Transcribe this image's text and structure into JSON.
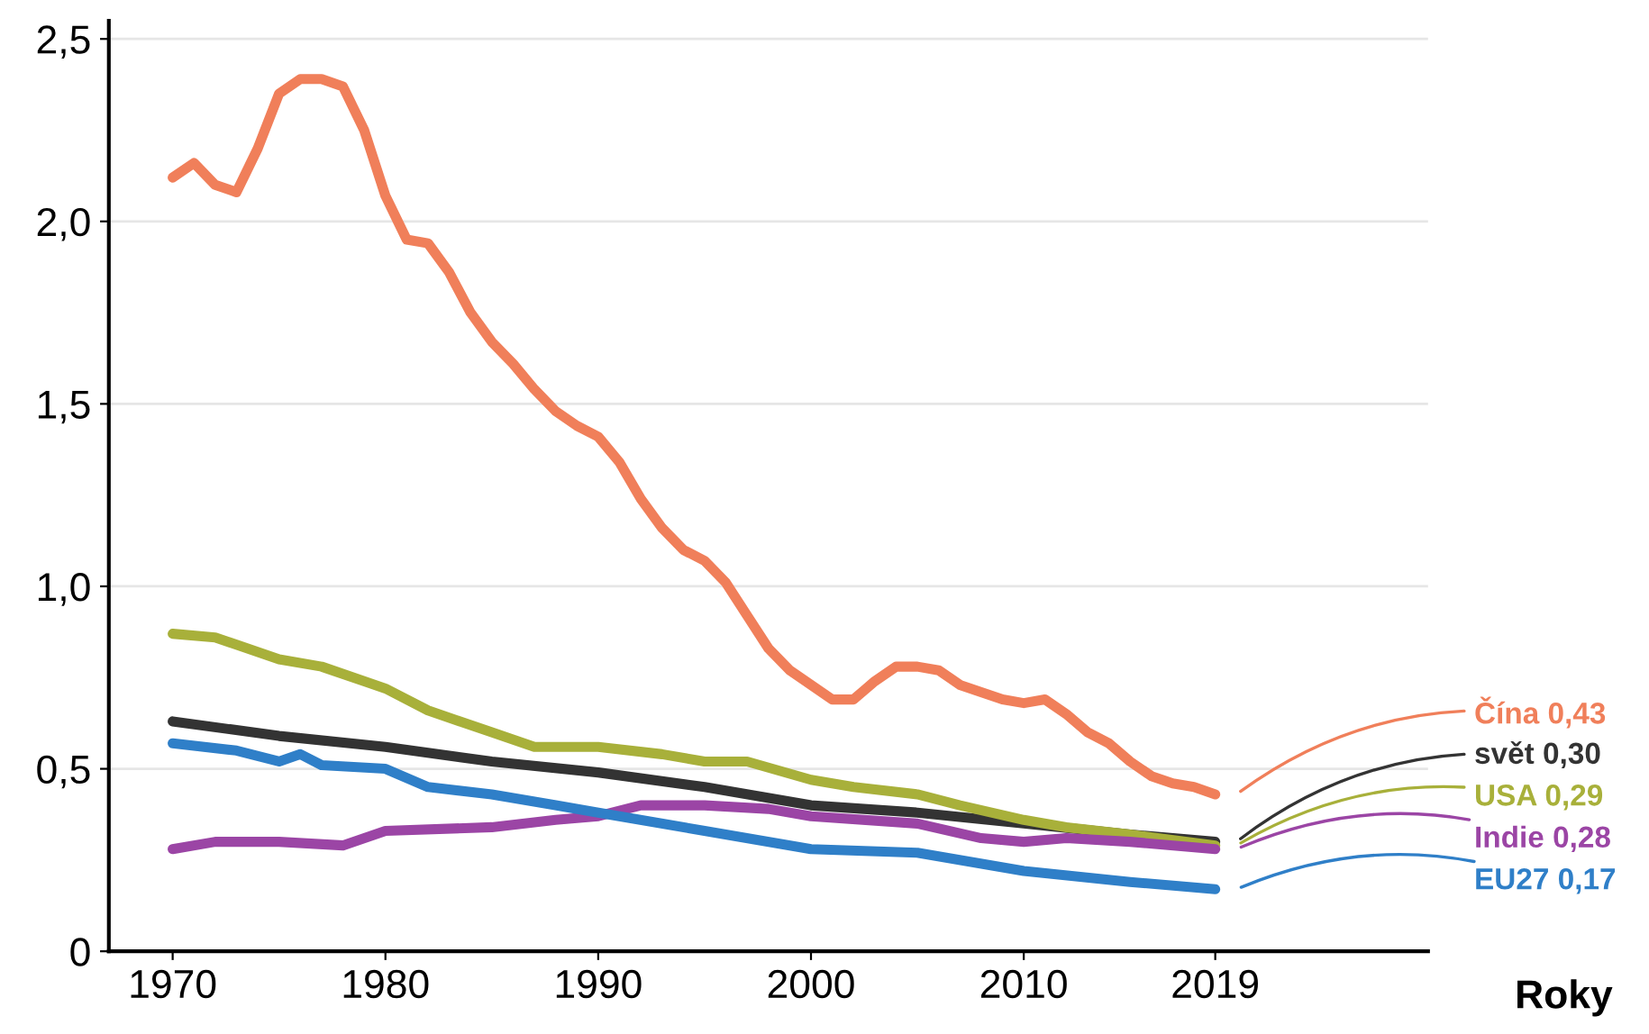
{
  "chart_data": {
    "type": "line",
    "xlabel": "Roky",
    "xlim": [
      1967,
      2029
    ],
    "xticks": [
      1970,
      1980,
      1990,
      2000,
      2010,
      2019
    ],
    "ylim": [
      0,
      2.55
    ],
    "yticks": [
      0,
      {
        "value": 0.5,
        "label": "0,5"
      },
      {
        "value": 1.0,
        "label": "1,0"
      },
      {
        "value": 1.5,
        "label": "1,5"
      },
      {
        "value": 2.0,
        "label": "2,0"
      },
      {
        "value": 2.5,
        "label": "2,5"
      }
    ],
    "grid": "y",
    "line_style": "solid",
    "series": [
      {
        "name": "Čína 0,43",
        "color": "#f07f5a",
        "x": [
          1970,
          1971,
          1972,
          1973,
          1974,
          1975,
          1976,
          1977,
          1978,
          1979,
          1980,
          1981,
          1982,
          1983,
          1984,
          1985,
          1986,
          1987,
          1988,
          1989,
          1990,
          1991,
          1992,
          1993,
          1994,
          1995,
          1996,
          1997,
          1998,
          1999,
          2000,
          2001,
          2002,
          2003,
          2004,
          2005,
          2006,
          2007,
          2008,
          2009,
          2010,
          2011,
          2012,
          2013,
          2014,
          2015,
          2016,
          2017,
          2018,
          2019
        ],
        "values": [
          2.12,
          2.16,
          2.1,
          2.08,
          2.2,
          2.35,
          2.39,
          2.39,
          2.37,
          2.25,
          2.07,
          1.95,
          1.94,
          1.86,
          1.75,
          1.67,
          1.61,
          1.54,
          1.48,
          1.44,
          1.41,
          1.34,
          1.24,
          1.16,
          1.1,
          1.07,
          1.01,
          0.92,
          0.83,
          0.77,
          0.73,
          0.69,
          0.69,
          0.74,
          0.78,
          0.78,
          0.77,
          0.73,
          0.71,
          0.69,
          0.68,
          0.69,
          0.65,
          0.6,
          0.57,
          0.52,
          0.48,
          0.46,
          0.45,
          0.43
        ]
      },
      {
        "name": "svět 0,30",
        "color": "#333333",
        "x": [
          1970,
          1975,
          1980,
          1985,
          1990,
          1995,
          2000,
          2005,
          2010,
          2015,
          2019
        ],
        "values": [
          0.63,
          0.59,
          0.56,
          0.52,
          0.49,
          0.45,
          0.4,
          0.38,
          0.35,
          0.32,
          0.3
        ]
      },
      {
        "name": "USA 0,29",
        "color": "#a8b03a",
        "x": [
          1970,
          1972,
          1973,
          1975,
          1977,
          1980,
          1982,
          1985,
          1987,
          1990,
          1993,
          1995,
          1997,
          2000,
          2002,
          2005,
          2007,
          2010,
          2012,
          2015,
          2019
        ],
        "values": [
          0.87,
          0.86,
          0.84,
          0.8,
          0.78,
          0.72,
          0.66,
          0.6,
          0.56,
          0.56,
          0.54,
          0.52,
          0.52,
          0.47,
          0.45,
          0.43,
          0.4,
          0.36,
          0.34,
          0.32,
          0.29
        ]
      },
      {
        "name": "Indie 0,28",
        "color": "#9b45a5",
        "x": [
          1970,
          1972,
          1975,
          1978,
          1980,
          1985,
          1988,
          1990,
          1992,
          1995,
          1998,
          2000,
          2005,
          2008,
          2010,
          2012,
          2015,
          2019
        ],
        "values": [
          0.28,
          0.3,
          0.3,
          0.29,
          0.33,
          0.34,
          0.36,
          0.37,
          0.4,
          0.4,
          0.39,
          0.37,
          0.35,
          0.31,
          0.3,
          0.31,
          0.3,
          0.28
        ]
      },
      {
        "name": "EU27 0,17",
        "color": "#2f7fc8",
        "x": [
          1970,
          1973,
          1975,
          1976,
          1977,
          1980,
          1982,
          1985,
          1988,
          1990,
          1995,
          2000,
          2005,
          2010,
          2015,
          2019
        ],
        "values": [
          0.57,
          0.55,
          0.52,
          0.54,
          0.51,
          0.5,
          0.45,
          0.43,
          0.4,
          0.38,
          0.33,
          0.28,
          0.27,
          0.22,
          0.19,
          0.17
        ]
      }
    ]
  }
}
